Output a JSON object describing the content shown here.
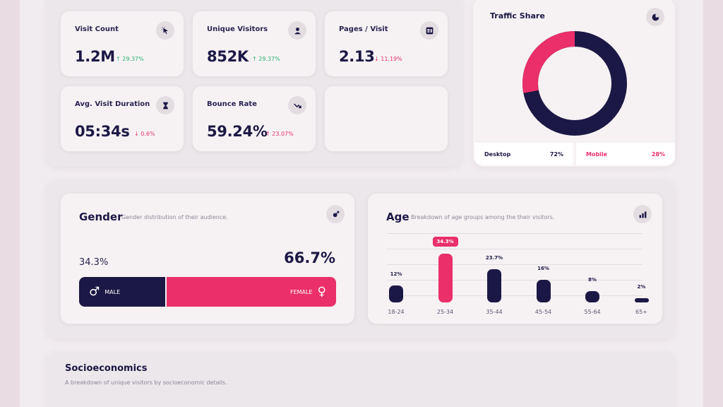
{
  "stats": [
    {
      "label": "Visit Count",
      "value": "1.2M",
      "delta": "↑ 29.37%",
      "dir": "up",
      "icon": "cursor-click-icon"
    },
    {
      "label": "Unique Visitors",
      "value": "852K",
      "delta": "↑ 29.37%",
      "dir": "up",
      "icon": "user-icon"
    },
    {
      "label": "Pages / Visit",
      "value": "2.13",
      "delta": "↓ 11.19%",
      "dir": "down",
      "icon": "pages-icon"
    },
    {
      "label": "Avg. Visit Duration",
      "value": "05:34s",
      "delta": "↓ 0.6%",
      "dir": "down",
      "icon": "hourglass-icon"
    },
    {
      "label": "Bounce Rate",
      "value": "59.24%",
      "delta": "↑ 23.07%",
      "dir": "down",
      "icon": "trend-down-icon"
    }
  ],
  "traffic": {
    "title": "Traffic Share",
    "icon": "pie-chart-icon",
    "desktop_label": "Desktop",
    "desktop_value": "72%",
    "mobile_label": "Mobile",
    "mobile_value": "28%",
    "desktop_share": 0.72,
    "mobile_share": 0.28,
    "colors": {
      "desktop": "#1c1845",
      "mobile": "#ea2f6a"
    }
  },
  "gender": {
    "title": "Gender",
    "subtitle": "Gender distribution of their audience.",
    "icon": "gender-icon",
    "male_percent": "34.3%",
    "female_percent": "66.7%",
    "male_label": "MALE",
    "female_label": "FEMALE",
    "male_share": 0.343,
    "female_share": 0.667
  },
  "age": {
    "title": "Age",
    "subtitle": "Breakdown of age groups among the their visitors.",
    "icon": "bar-chart-icon"
  },
  "chart_data": {
    "type": "bar",
    "categories": [
      "18-24",
      "25-34",
      "35-44",
      "45-54",
      "55-64",
      "65+"
    ],
    "values": [
      12,
      34.3,
      23.7,
      16,
      8,
      2
    ],
    "labels": [
      "12%",
      "34.3%",
      "23.7%",
      "16%",
      "8%",
      "2%"
    ],
    "highlight_index": 1,
    "ylim": [
      0,
      36
    ],
    "grid": true
  },
  "socio": {
    "title": "Socioeconomics",
    "subtitle": "A breakdown of unique visitors by socioeconomic details."
  }
}
